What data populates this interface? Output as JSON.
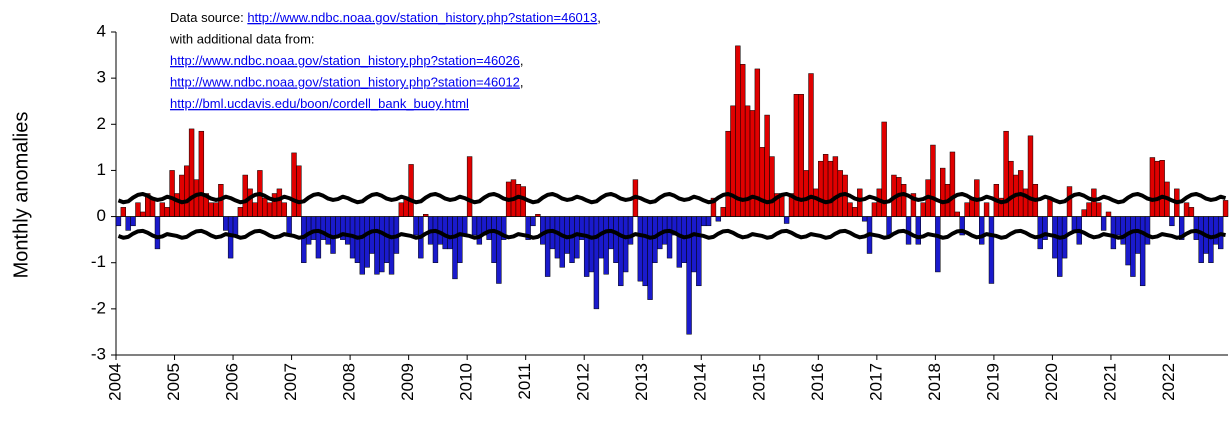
{
  "chart_data": {
    "type": "bar",
    "y_label": "Monthly anomalies",
    "annotation": [
      {
        "prefix": "Data source: ",
        "link": "http://www.ndbc.noaa.gov/station_history.php?station=46013",
        "suffix": ","
      },
      {
        "prefix": "with additional data from:"
      },
      {
        "link": "http://www.ndbc.noaa.gov/station_history.php?station=46026",
        "suffix": ","
      },
      {
        "link": "http://www.ndbc.noaa.gov/station_history.php?station=46012",
        "suffix": ","
      },
      {
        "link": "http://bml.ucdavis.edu/boon/cordell_bank_buoy.html"
      }
    ],
    "categories": [
      "2004",
      null,
      null,
      null,
      null,
      null,
      null,
      null,
      null,
      null,
      null,
      null,
      "2005",
      null,
      null,
      null,
      null,
      null,
      null,
      null,
      null,
      null,
      null,
      null,
      "2006",
      null,
      null,
      null,
      null,
      null,
      null,
      null,
      null,
      null,
      null,
      null,
      "2007",
      null,
      null,
      null,
      null,
      null,
      null,
      null,
      null,
      null,
      null,
      null,
      "2008",
      null,
      null,
      null,
      null,
      null,
      null,
      null,
      null,
      null,
      null,
      null,
      "2009",
      null,
      null,
      null,
      null,
      null,
      null,
      null,
      null,
      null,
      null,
      null,
      "2010",
      null,
      null,
      null,
      null,
      null,
      null,
      null,
      null,
      null,
      null,
      null,
      "2011",
      null,
      null,
      null,
      null,
      null,
      null,
      null,
      null,
      null,
      null,
      null,
      "2012",
      null,
      null,
      null,
      null,
      null,
      null,
      null,
      null,
      null,
      null,
      null,
      "2013",
      null,
      null,
      null,
      null,
      null,
      null,
      null,
      null,
      null,
      null,
      null,
      "2014",
      null,
      null,
      null,
      null,
      null,
      null,
      null,
      null,
      null,
      null,
      null,
      "2015",
      null,
      null,
      null,
      null,
      null,
      null,
      null,
      null,
      null,
      null,
      null,
      "2016",
      null,
      null,
      null,
      null,
      null,
      null,
      null,
      null,
      null,
      null,
      null,
      "2017",
      null,
      null,
      null,
      null,
      null,
      null,
      null,
      null,
      null,
      null,
      null,
      "2018",
      null,
      null,
      null,
      null,
      null,
      null,
      null,
      null,
      null,
      null,
      null,
      "2019",
      null,
      null,
      null,
      null,
      null,
      null,
      null,
      null,
      null,
      null,
      null,
      "2020",
      null,
      null,
      null,
      null,
      null,
      null,
      null,
      null,
      null,
      null,
      null,
      "2021",
      null,
      null,
      null,
      null,
      null,
      null,
      null,
      null,
      null,
      null,
      null,
      "2022",
      null,
      null,
      null,
      null,
      null,
      null,
      null,
      null,
      null,
      null,
      null
    ],
    "values": [
      -0.2,
      0.2,
      -0.3,
      -0.2,
      0.3,
      0.1,
      0.5,
      0.4,
      -0.7,
      0.3,
      0.2,
      1.0,
      0.5,
      0.9,
      1.1,
      1.9,
      0.8,
      1.85,
      0.5,
      0.3,
      0.3,
      0.7,
      -0.3,
      -0.9,
      -0.4,
      0.2,
      0.9,
      0.6,
      0.3,
      1.0,
      0.4,
      0.3,
      0.5,
      0.6,
      0.3,
      -0.4,
      1.38,
      1.1,
      -1.0,
      -0.6,
      -0.5,
      -0.9,
      -0.5,
      -0.6,
      -0.8,
      -0.4,
      -0.5,
      -0.6,
      -0.9,
      -1.0,
      -1.25,
      -1.1,
      -0.8,
      -1.25,
      -1.2,
      -1.0,
      -1.25,
      -0.8,
      0.3,
      0.4,
      1.13,
      -0.4,
      -0.9,
      0.05,
      -0.6,
      -1.0,
      -0.6,
      -0.7,
      -0.7,
      -1.35,
      -1.0,
      -0.4,
      1.3,
      -0.4,
      -0.6,
      -0.4,
      -0.5,
      -1.0,
      -1.45,
      -0.5,
      0.75,
      0.8,
      0.7,
      0.65,
      -0.5,
      -0.2,
      0.05,
      -0.6,
      -1.3,
      -0.7,
      -0.9,
      -1.1,
      -0.8,
      -1.0,
      -0.9,
      -0.5,
      -1.3,
      -1.2,
      -2.0,
      -0.9,
      -1.25,
      -0.7,
      -1.0,
      -1.5,
      -1.2,
      -0.6,
      0.8,
      -1.4,
      -1.5,
      -1.8,
      -1.0,
      -0.7,
      -0.6,
      -0.9,
      -0.4,
      -1.1,
      -1.0,
      -2.55,
      -1.2,
      -1.5,
      -0.2,
      -0.2,
      0.4,
      -0.1,
      0.2,
      1.85,
      2.4,
      3.7,
      3.3,
      2.4,
      2.3,
      3.2,
      1.5,
      2.2,
      1.3,
      0.5,
      0.5,
      -0.15,
      0.5,
      2.65,
      2.65,
      1.0,
      3.1,
      0.6,
      1.2,
      1.35,
      1.2,
      1.3,
      1.0,
      0.9,
      0.3,
      0.2,
      0.6,
      -0.1,
      -0.8,
      0.3,
      0.6,
      2.05,
      -0.4,
      0.9,
      0.85,
      0.7,
      -0.6,
      0.5,
      -0.6,
      0.3,
      0.8,
      1.55,
      -1.2,
      1.05,
      0.7,
      1.4,
      0.1,
      -0.4,
      0.3,
      0.4,
      0.8,
      -0.6,
      0.3,
      -1.45,
      0.7,
      0.4,
      1.85,
      1.2,
      0.9,
      1.0,
      0.6,
      1.75,
      0.7,
      -0.7,
      -0.5,
      0.4,
      -0.9,
      -1.3,
      -0.9,
      0.65,
      -0.3,
      -0.6,
      0.15,
      0.3,
      0.6,
      0.3,
      -0.3,
      0.1,
      -0.7,
      -0.4,
      -0.6,
      -1.05,
      -1.3,
      -0.8,
      -1.5,
      -0.6,
      1.28,
      1.2,
      1.22,
      0.75,
      -0.2,
      0.6,
      -0.5,
      0.3,
      0.2,
      -0.5,
      -1.0,
      -0.8,
      -1.0,
      -0.6,
      -0.7,
      0.35
    ],
    "positive_color": "#e00000",
    "negative_color": "#1a1acc",
    "threshold_lines": [
      {
        "color": "#000000",
        "values": [
          0.35,
          0.31,
          0.33,
          0.41,
          0.47,
          0.49,
          0.45,
          0.39,
          0.36,
          0.38,
          0.43,
          0.4,
          0.35,
          0.31,
          0.33,
          0.41,
          0.47,
          0.49,
          0.45,
          0.39,
          0.36,
          0.38,
          0.43,
          0.4,
          0.35,
          0.31,
          0.33,
          0.41,
          0.47,
          0.49,
          0.45,
          0.39,
          0.36,
          0.38,
          0.43,
          0.4,
          0.35,
          0.31,
          0.33,
          0.41,
          0.47,
          0.49,
          0.45,
          0.39,
          0.36,
          0.38,
          0.43,
          0.4,
          0.35,
          0.31,
          0.33,
          0.41,
          0.47,
          0.49,
          0.45,
          0.39,
          0.36,
          0.38,
          0.43,
          0.4,
          0.35,
          0.31,
          0.33,
          0.41,
          0.47,
          0.49,
          0.45,
          0.39,
          0.36,
          0.38,
          0.43,
          0.4,
          0.35,
          0.31,
          0.33,
          0.41,
          0.47,
          0.49,
          0.45,
          0.39,
          0.36,
          0.38,
          0.43,
          0.4,
          0.35,
          0.31,
          0.33,
          0.41,
          0.47,
          0.49,
          0.45,
          0.39,
          0.36,
          0.38,
          0.43,
          0.4,
          0.35,
          0.31,
          0.33,
          0.41,
          0.47,
          0.49,
          0.45,
          0.39,
          0.36,
          0.38,
          0.43,
          0.4,
          0.35,
          0.31,
          0.33,
          0.41,
          0.47,
          0.49,
          0.45,
          0.39,
          0.36,
          0.38,
          0.43,
          0.4,
          0.35,
          0.31,
          0.33,
          0.41,
          0.47,
          0.49,
          0.45,
          0.39,
          0.36,
          0.38,
          0.43,
          0.4,
          0.35,
          0.31,
          0.33,
          0.41,
          0.47,
          0.49,
          0.45,
          0.39,
          0.36,
          0.38,
          0.43,
          0.4,
          0.35,
          0.31,
          0.33,
          0.41,
          0.47,
          0.49,
          0.45,
          0.39,
          0.36,
          0.38,
          0.43,
          0.4,
          0.35,
          0.31,
          0.33,
          0.41,
          0.47,
          0.49,
          0.45,
          0.39,
          0.36,
          0.38,
          0.43,
          0.4,
          0.35,
          0.31,
          0.33,
          0.41,
          0.47,
          0.49,
          0.45,
          0.39,
          0.36,
          0.38,
          0.43,
          0.4,
          0.35,
          0.31,
          0.33,
          0.41,
          0.47,
          0.49,
          0.45,
          0.39,
          0.36,
          0.38,
          0.43,
          0.4,
          0.35,
          0.31,
          0.33,
          0.41,
          0.47,
          0.49,
          0.45,
          0.39,
          0.36,
          0.38,
          0.43,
          0.4,
          0.35,
          0.31,
          0.33,
          0.41,
          0.47,
          0.49,
          0.45,
          0.39,
          0.36,
          0.38,
          0.43,
          0.4,
          0.35,
          0.31,
          0.33,
          0.41,
          0.47,
          0.49,
          0.45,
          0.39,
          0.36,
          0.38,
          0.43,
          0.4
        ]
      },
      {
        "color": "#000000",
        "values": [
          -0.42,
          -0.46,
          -0.44,
          -0.37,
          -0.32,
          -0.31,
          -0.35,
          -0.41,
          -0.45,
          -0.43,
          -0.38,
          -0.4,
          -0.42,
          -0.46,
          -0.44,
          -0.37,
          -0.32,
          -0.31,
          -0.35,
          -0.41,
          -0.45,
          -0.43,
          -0.38,
          -0.4,
          -0.42,
          -0.46,
          -0.44,
          -0.37,
          -0.32,
          -0.31,
          -0.35,
          -0.41,
          -0.45,
          -0.43,
          -0.38,
          -0.4,
          -0.42,
          -0.46,
          -0.44,
          -0.37,
          -0.32,
          -0.31,
          -0.35,
          -0.41,
          -0.45,
          -0.43,
          -0.38,
          -0.4,
          -0.42,
          -0.46,
          -0.44,
          -0.37,
          -0.32,
          -0.31,
          -0.35,
          -0.41,
          -0.45,
          -0.43,
          -0.38,
          -0.4,
          -0.42,
          -0.46,
          -0.44,
          -0.37,
          -0.32,
          -0.31,
          -0.35,
          -0.41,
          -0.45,
          -0.43,
          -0.38,
          -0.4,
          -0.42,
          -0.46,
          -0.44,
          -0.37,
          -0.32,
          -0.31,
          -0.35,
          -0.41,
          -0.45,
          -0.43,
          -0.38,
          -0.4,
          -0.42,
          -0.46,
          -0.44,
          -0.37,
          -0.32,
          -0.31,
          -0.35,
          -0.41,
          -0.45,
          -0.43,
          -0.38,
          -0.4,
          -0.42,
          -0.46,
          -0.44,
          -0.37,
          -0.32,
          -0.31,
          -0.35,
          -0.41,
          -0.45,
          -0.43,
          -0.38,
          -0.4,
          -0.42,
          -0.46,
          -0.44,
          -0.37,
          -0.32,
          -0.31,
          -0.35,
          -0.41,
          -0.45,
          -0.43,
          -0.38,
          -0.4,
          -0.42,
          -0.46,
          -0.44,
          -0.37,
          -0.32,
          -0.31,
          -0.35,
          -0.41,
          -0.45,
          -0.43,
          -0.38,
          -0.4,
          -0.42,
          -0.46,
          -0.44,
          -0.37,
          -0.32,
          -0.31,
          -0.35,
          -0.41,
          -0.45,
          -0.43,
          -0.38,
          -0.4,
          -0.42,
          -0.46,
          -0.44,
          -0.37,
          -0.32,
          -0.31,
          -0.35,
          -0.41,
          -0.45,
          -0.43,
          -0.38,
          -0.4,
          -0.42,
          -0.46,
          -0.44,
          -0.37,
          -0.32,
          -0.31,
          -0.35,
          -0.41,
          -0.45,
          -0.43,
          -0.38,
          -0.4,
          -0.42,
          -0.46,
          -0.44,
          -0.37,
          -0.32,
          -0.31,
          -0.35,
          -0.41,
          -0.45,
          -0.43,
          -0.38,
          -0.4,
          -0.42,
          -0.46,
          -0.44,
          -0.37,
          -0.32,
          -0.31,
          -0.35,
          -0.41,
          -0.45,
          -0.43,
          -0.38,
          -0.4,
          -0.42,
          -0.46,
          -0.44,
          -0.37,
          -0.32,
          -0.31,
          -0.35,
          -0.41,
          -0.45,
          -0.43,
          -0.38,
          -0.4,
          -0.42,
          -0.46,
          -0.44,
          -0.37,
          -0.32,
          -0.31,
          -0.35,
          -0.41,
          -0.45,
          -0.43,
          -0.38,
          -0.4,
          -0.42,
          -0.46,
          -0.44,
          -0.37,
          -0.32,
          -0.31,
          -0.35,
          -0.41,
          -0.45,
          -0.43,
          -0.38,
          -0.4
        ]
      }
    ],
    "ylim": [
      -3,
      4
    ],
    "yticks": [
      -3,
      -2,
      -1,
      0,
      1,
      2,
      3,
      4
    ],
    "grid": false
  }
}
